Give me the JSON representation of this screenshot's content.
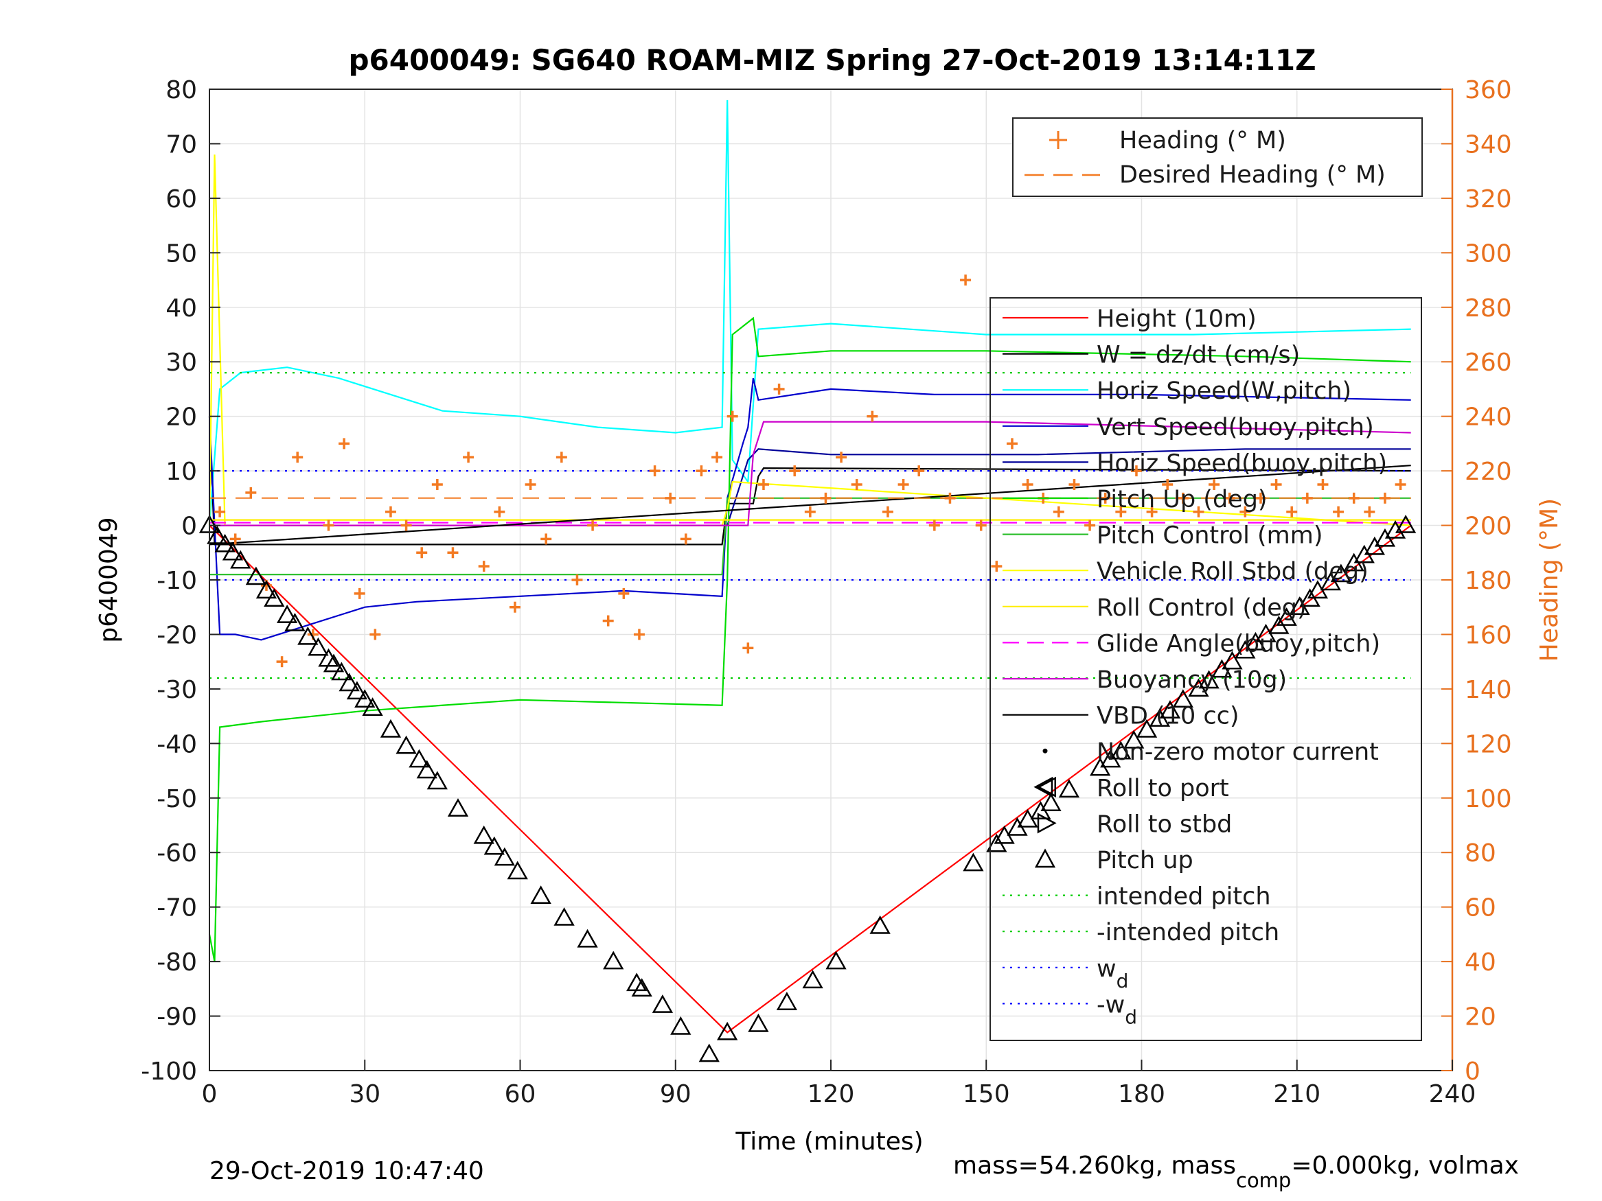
{
  "chart_data": {
    "type": "line",
    "title": "p6400049: SG640 ROAM-MIZ Spring 27-Oct-2019 13:14:11Z",
    "xlabel": "Time (minutes)",
    "ylabel": "p6400049",
    "ylabel_right": "Heading (°M)",
    "xlim": [
      0,
      240
    ],
    "ylim": [
      -100,
      80
    ],
    "ylim_right": [
      0,
      360
    ],
    "xticks": [
      "0",
      "30",
      "60",
      "90",
      "120",
      "150",
      "180",
      "210",
      "240"
    ],
    "yticks": [
      "80",
      "70",
      "60",
      "50",
      "40",
      "30",
      "20",
      "10",
      "0",
      "-10",
      "-20",
      "-30",
      "-40",
      "-50",
      "-60",
      "-70",
      "-80",
      "-90",
      "-100"
    ],
    "yticks_right": [
      "360",
      "340",
      "320",
      "300",
      "280",
      "260",
      "240",
      "220",
      "200",
      "180",
      "160",
      "140",
      "120",
      "100",
      "80",
      "60",
      "40",
      "20",
      "0"
    ],
    "grid": true,
    "legend_heading": [
      "Heading (° M)",
      "Desired Heading (° M)"
    ],
    "legend_main": [
      "Height (10m)",
      "W = dz/dt (cm/s)",
      "Horiz Speed(W,pitch)",
      "Vert Speed(buoy,pitch)",
      "Horiz Speed(buoy,pitch)",
      "Pitch Up (deg)",
      "Pitch Control (mm)",
      "Vehicle Roll Stbd (deg)",
      "Roll Control (deg)",
      "Glide Angle(buoy,pitch)",
      "Buoyancy (10g)",
      "VBD (10 cc)",
      "Non-zero motor current",
      "Roll to port",
      "Roll to stbd",
      "Pitch up",
      "intended pitch",
      "-intended pitch",
      "w",
      "-w"
    ],
    "legend_sub": "d",
    "series": [
      {
        "name": "Height (10m)",
        "color": "#ff0000",
        "x": [
          0,
          100,
          232
        ],
        "y": [
          0,
          -93,
          0
        ]
      },
      {
        "name": "W = dz/dt (cm/s)",
        "color": "#000000",
        "x": [
          0,
          1,
          99,
          100,
          101,
          105,
          106,
          107,
          232
        ],
        "y": [
          20,
          -3.5,
          -3.5,
          4,
          4,
          4,
          9,
          10.5,
          10
        ]
      },
      {
        "name": "Horiz Speed(W,pitch)",
        "color": "#00ffff",
        "x": [
          0,
          2,
          6,
          15,
          25,
          35,
          45,
          60,
          75,
          90,
          99,
          100,
          101,
          104,
          106,
          120,
          150,
          190,
          232
        ],
        "y": [
          0,
          25,
          28,
          29,
          27,
          24,
          21,
          20,
          18,
          17,
          18,
          78,
          12,
          8,
          36,
          37,
          35,
          35,
          36
        ]
      },
      {
        "name": "Vert Speed(buoy,pitch)",
        "color": "#0000cc",
        "x": [
          0,
          2,
          5,
          10,
          20,
          30,
          40,
          60,
          80,
          99,
          100,
          103,
          104,
          105,
          106,
          120,
          140,
          180,
          232
        ],
        "y": [
          20,
          -20,
          -20,
          -21,
          -18,
          -15,
          -14,
          -13,
          -12,
          -13,
          5,
          15,
          18,
          27,
          23,
          25,
          24,
          24,
          23
        ]
      },
      {
        "name": "Horiz Speed(buoy,pitch)",
        "color": "#000099",
        "x": [
          0,
          100,
          104,
          106,
          120,
          160,
          200,
          232
        ],
        "y": [
          0,
          0,
          12,
          14,
          13,
          13,
          14,
          14
        ]
      },
      {
        "name": "Pitch Up (deg)",
        "color": "#00dd00",
        "x": [
          0,
          1,
          2,
          10,
          30,
          60,
          99,
          100,
          101,
          105,
          106,
          120,
          150,
          200,
          232
        ],
        "y": [
          -75,
          -80,
          -37,
          -36,
          -34,
          -32,
          -33,
          -10,
          35,
          38,
          31,
          32,
          32,
          31,
          30
        ]
      },
      {
        "name": "Pitch Control (mm)",
        "color": "#2fbf2f",
        "x": [
          0,
          99,
          100,
          232
        ],
        "y": [
          -9,
          -9,
          5,
          5
        ]
      },
      {
        "name": "Vehicle Roll Stbd (deg)",
        "color": "#ffff00",
        "x": [
          0,
          1,
          3,
          99,
          100,
          101,
          232
        ],
        "y": [
          0,
          68,
          0,
          0,
          3,
          8,
          0
        ]
      },
      {
        "name": "Roll Control (deg)",
        "color": "#ffee00",
        "x": [
          0,
          100,
          232
        ],
        "y": [
          1,
          1,
          1
        ]
      },
      {
        "name": "Glide Angle(buoy,pitch)",
        "color": "#ff00ff",
        "x": [
          0,
          100,
          232
        ],
        "y": [
          0.5,
          0.5,
          0.5
        ]
      },
      {
        "name": "Buoyancy (10g)",
        "color": "#cc00cc",
        "x": [
          0,
          104,
          105,
          107,
          150,
          232
        ],
        "y": [
          0,
          0,
          13,
          19,
          19,
          17
        ]
      },
      {
        "name": "VBD (10 cc)",
        "color": "#000000",
        "x": [
          0,
          232
        ],
        "y": [
          -3.5,
          11
        ]
      },
      {
        "name": "intended pitch",
        "color": "#00cc00",
        "x": [
          0,
          232
        ],
        "y": [
          28,
          28
        ]
      },
      {
        "name": "-intended pitch",
        "color": "#00cc00",
        "x": [
          0,
          232
        ],
        "y": [
          -28,
          -28
        ]
      },
      {
        "name": "w_d",
        "color": "#0000ff",
        "x": [
          0,
          232
        ],
        "y": [
          10,
          10
        ]
      },
      {
        "name": "-w_d",
        "color": "#0000ff",
        "x": [
          0,
          232
        ],
        "y": [
          -10,
          -10
        ]
      }
    ],
    "heading_points": {
      "name": "Heading (° M)",
      "color": "#f37a22",
      "x": [
        2,
        5,
        8,
        11,
        14,
        17,
        20,
        23,
        26,
        29,
        32,
        35,
        38,
        41,
        44,
        47,
        50,
        53,
        56,
        59,
        62,
        65,
        68,
        71,
        74,
        77,
        80,
        83,
        86,
        89,
        92,
        95,
        98,
        101,
        104,
        107,
        110,
        113,
        116,
        119,
        122,
        125,
        128,
        131,
        134,
        137,
        140,
        143,
        146,
        149,
        152,
        155,
        158,
        161,
        164,
        167,
        170,
        173,
        176,
        179,
        182,
        185,
        188,
        191,
        194,
        197,
        200,
        203,
        206,
        209,
        212,
        215,
        218,
        221,
        224,
        227,
        230
      ],
      "y": [
        205,
        195,
        212,
        178,
        150,
        225,
        160,
        200,
        230,
        175,
        160,
        205,
        200,
        190,
        215,
        190,
        225,
        185,
        205,
        170,
        215,
        195,
        225,
        180,
        200,
        165,
        175,
        160,
        220,
        210,
        195,
        220,
        225,
        240,
        155,
        215,
        250,
        220,
        205,
        210,
        225,
        215,
        240,
        205,
        215,
        220,
        200,
        210,
        290,
        200,
        185,
        230,
        215,
        210,
        205,
        215,
        200,
        210,
        205,
        220,
        205,
        215,
        210,
        205,
        215,
        210,
        205,
        210,
        215,
        205,
        210,
        215,
        205,
        210,
        205,
        210,
        215
      ]
    },
    "desired_heading": {
      "name": "Desired Heading (° M)",
      "color": "#f37a22",
      "x": [
        0,
        232
      ],
      "y": [
        210,
        210
      ]
    },
    "pitch_up_markers": {
      "name": "Pitch up",
      "x": [
        0,
        1.5,
        3,
        4.5,
        6,
        9,
        11,
        12.5,
        15,
        16.5,
        19,
        21,
        23,
        24,
        25.5,
        27,
        28.5,
        30,
        31.5,
        35,
        38,
        40.5,
        42,
        44,
        48,
        53,
        55,
        57,
        59.5,
        64,
        68.5,
        73,
        78,
        82.5,
        83.5,
        87.5,
        91,
        96.5,
        100,
        106,
        111.5,
        116.5,
        121,
        129.5,
        147.5,
        152,
        153.5,
        156,
        158,
        160.5,
        162.5,
        166,
        172,
        174,
        176,
        178.5,
        181,
        183.5,
        185.5,
        188,
        191,
        193,
        195.5,
        197.5,
        200,
        202,
        204,
        206.5,
        208,
        210.5,
        212.5,
        214,
        216.5,
        218.5,
        221,
        223,
        225,
        227,
        229,
        231
      ],
      "y": [
        0,
        -2,
        -3.5,
        -5,
        -6.5,
        -9.5,
        -12,
        -13.5,
        -16.5,
        -18,
        -20.5,
        -22.5,
        -24.5,
        -25.5,
        -27,
        -29,
        -30.5,
        -32,
        -33.5,
        -37.5,
        -40.5,
        -43,
        -45,
        -47,
        -52,
        -57,
        -59,
        -61,
        -63.5,
        -68,
        -72,
        -76,
        -80,
        -84,
        -85,
        -88,
        -92,
        -97,
        -93,
        -91.5,
        -87.5,
        -83.5,
        -80,
        -73.5,
        -62,
        -58.5,
        -57,
        -55.5,
        -54,
        -52.5,
        -51,
        -48.5,
        -44.5,
        -43,
        -41.5,
        -39.5,
        -37.5,
        -35.5,
        -34,
        -32,
        -30,
        -28.5,
        -26.5,
        -25,
        -23,
        -21.5,
        -20,
        -18.5,
        -17,
        -15,
        -13.5,
        -12,
        -10.5,
        -9,
        -7,
        -5.5,
        -4,
        -2.5,
        -1,
        0
      ]
    },
    "roll_markers": {
      "name": "Roll to port",
      "x": [
        162
      ],
      "y": [
        -48
      ]
    }
  },
  "footer": {
    "date": "29-Oct-2019 10:47:40",
    "mass_prefix": "mass=54.260kg, mass",
    "mass_sub": "comp",
    "mass_suffix": "=0.000kg, volmax"
  }
}
